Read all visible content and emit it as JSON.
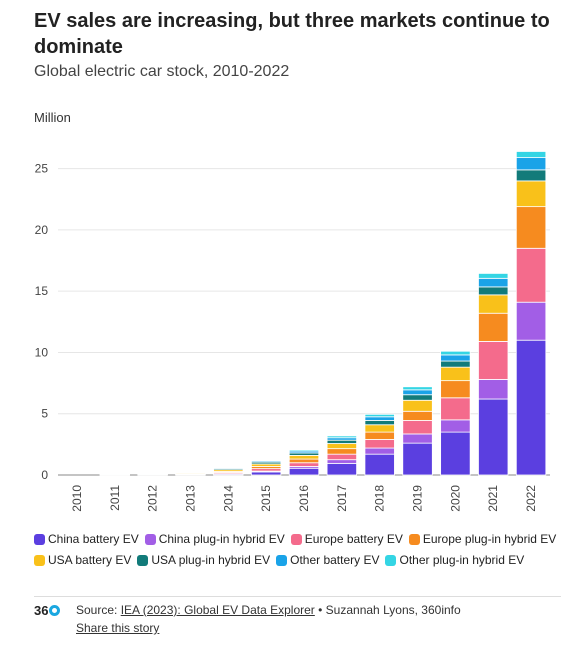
{
  "title": "EV sales are increasing, but three markets continue to dominate",
  "subtitle": "Global electric car stock, 2010-2022",
  "chart_data": {
    "type": "bar",
    "stacked": true,
    "ylabel": "Million",
    "ylim": [
      0,
      27.5
    ],
    "yticks": [
      "0",
      "5",
      "10",
      "15",
      "20",
      "25"
    ],
    "grid": true,
    "legend_position": "bottom",
    "categories": [
      "2010",
      "2011",
      "2012",
      "2013",
      "2014",
      "2015",
      "2016",
      "2017",
      "2018",
      "2019",
      "2020",
      "2021",
      "2022"
    ],
    "series": [
      {
        "name": "China battery EV",
        "color": "#5b3fe0",
        "values": [
          0.0,
          0.01,
          0.02,
          0.03,
          0.08,
          0.25,
          0.55,
          0.95,
          1.7,
          2.6,
          3.5,
          6.2,
          11.0
        ]
      },
      {
        "name": "China plug-in hybrid EV",
        "color": "#a25ee6",
        "values": [
          0.0,
          0.0,
          0.0,
          0.01,
          0.03,
          0.07,
          0.15,
          0.3,
          0.5,
          0.75,
          1.0,
          1.6,
          3.1
        ]
      },
      {
        "name": "Europe battery EV",
        "color": "#f46b8c",
        "values": [
          0.0,
          0.01,
          0.02,
          0.05,
          0.1,
          0.2,
          0.3,
          0.45,
          0.7,
          1.1,
          1.8,
          3.1,
          4.4
        ]
      },
      {
        "name": "Europe plug-in hybrid EV",
        "color": "#f68b1f",
        "values": [
          0.0,
          0.0,
          0.01,
          0.03,
          0.08,
          0.18,
          0.3,
          0.45,
          0.6,
          0.75,
          1.4,
          2.3,
          3.4
        ]
      },
      {
        "name": "USA battery EV",
        "color": "#f9c11a",
        "values": [
          0.0,
          0.01,
          0.03,
          0.07,
          0.14,
          0.2,
          0.3,
          0.42,
          0.6,
          0.9,
          1.1,
          1.5,
          2.1
        ]
      },
      {
        "name": "USA plug-in hybrid EV",
        "color": "#127b7a",
        "values": [
          0.0,
          0.01,
          0.03,
          0.06,
          0.1,
          0.15,
          0.2,
          0.27,
          0.35,
          0.45,
          0.5,
          0.65,
          0.9
        ]
      },
      {
        "name": "Other battery EV",
        "color": "#1aa3e8",
        "values": [
          0.0,
          0.01,
          0.02,
          0.04,
          0.07,
          0.1,
          0.15,
          0.2,
          0.3,
          0.4,
          0.5,
          0.7,
          1.0
        ]
      },
      {
        "name": "Other plug-in hybrid EV",
        "color": "#34d5e4",
        "values": [
          0.0,
          0.0,
          0.01,
          0.02,
          0.04,
          0.06,
          0.1,
          0.15,
          0.2,
          0.25,
          0.3,
          0.4,
          0.5
        ]
      }
    ]
  },
  "footer": {
    "logo_text": "36",
    "source_prefix": "Source: ",
    "source_link": "IEA (2023): Global EV Data Explorer",
    "source_suffix": " • Suzannah Lyons, 360info",
    "share_label": "Share this story"
  }
}
